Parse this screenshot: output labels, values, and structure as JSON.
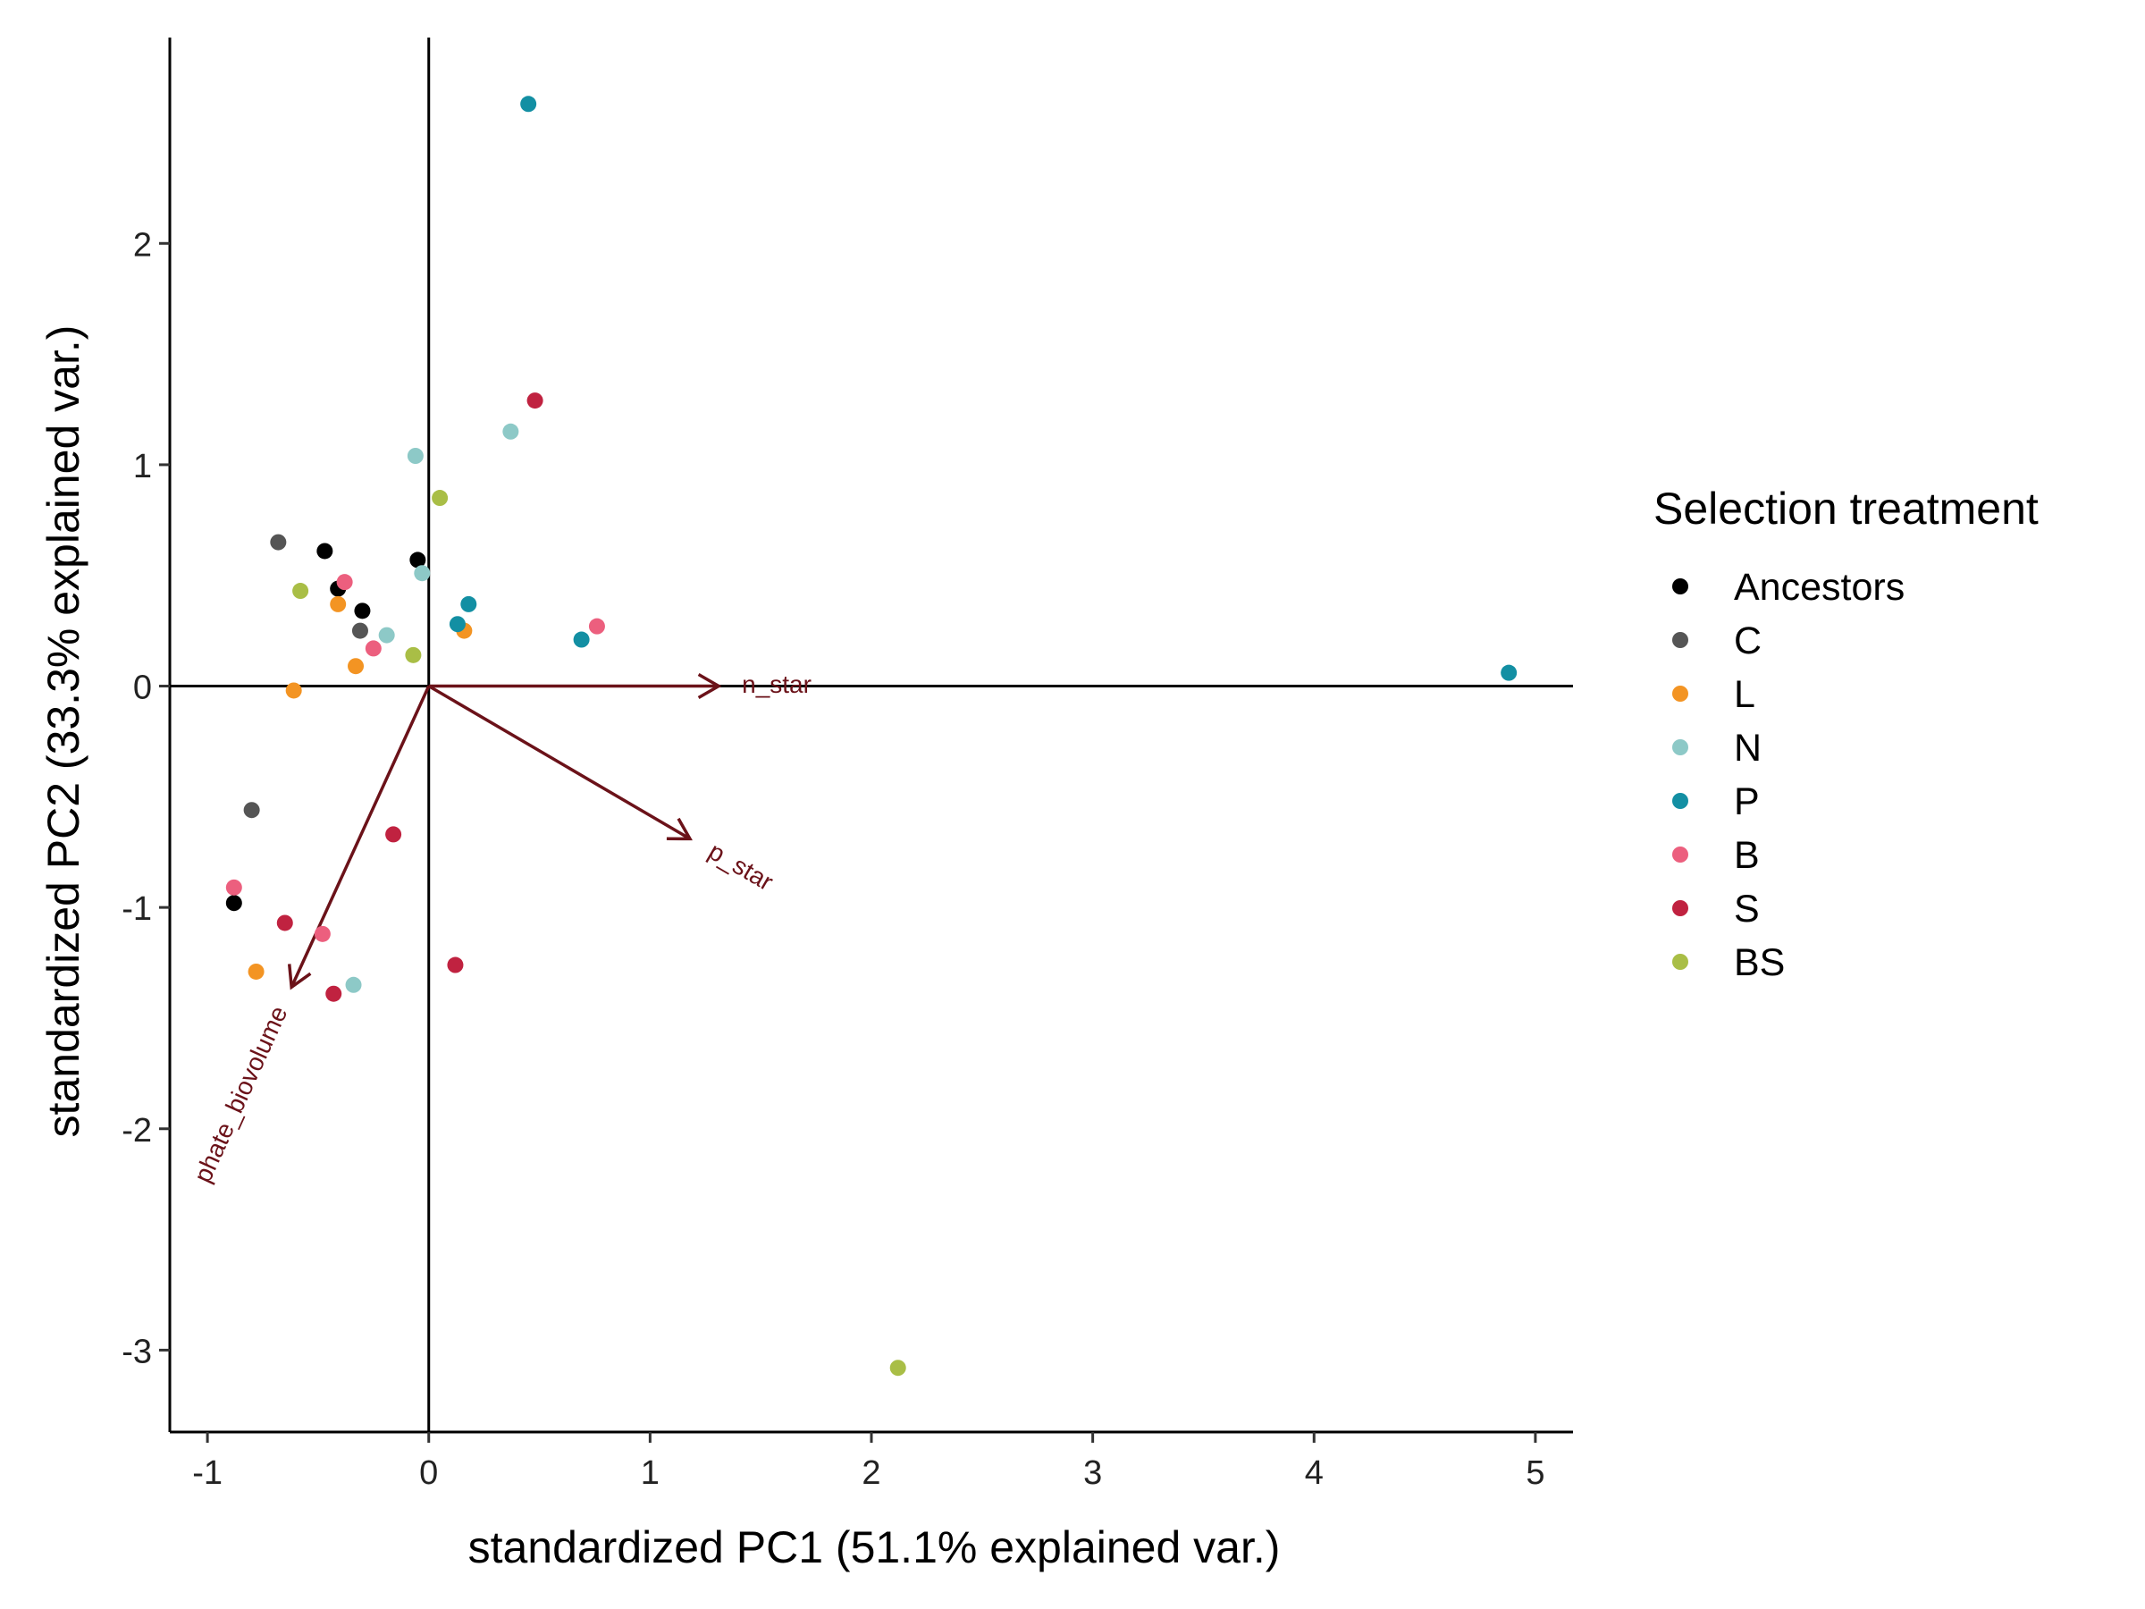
{
  "chart_data": {
    "type": "scatter",
    "xlabel": "standardized PC1 (51.1% explained var.)",
    "ylabel": "standardized PC2 (33.3% explained var.)",
    "xlim": [
      -1.17,
      5.17
    ],
    "ylim": [
      -3.37,
      2.93
    ],
    "x_ticks": [
      -1,
      0,
      1,
      2,
      3,
      4,
      5
    ],
    "y_ticks": [
      -3,
      -2,
      -1,
      0,
      1,
      2
    ],
    "x_tick_labels": [
      "-1",
      "0",
      "1",
      "2",
      "3",
      "4",
      "5"
    ],
    "y_tick_labels": [
      "-3",
      "-2",
      "-1",
      "0",
      "1",
      "2"
    ],
    "reference_lines": {
      "x": 0,
      "y": 0
    },
    "legend": {
      "title": "Selection treatment",
      "placement": "right"
    },
    "series": [
      {
        "name": "Ancestors",
        "color": "#000000",
        "points": [
          [
            -0.47,
            0.61
          ],
          [
            -0.41,
            0.44
          ],
          [
            -0.3,
            0.34
          ],
          [
            -0.05,
            0.57
          ],
          [
            -0.88,
            -0.98
          ]
        ]
      },
      {
        "name": "C",
        "color": "#555555",
        "points": [
          [
            -0.68,
            0.65
          ],
          [
            -0.31,
            0.25
          ],
          [
            -0.8,
            -0.56
          ]
        ]
      },
      {
        "name": "L",
        "color": "#F39423",
        "points": [
          [
            -0.41,
            0.37
          ],
          [
            -0.33,
            0.09
          ],
          [
            -0.61,
            -0.02
          ],
          [
            0.16,
            0.25
          ],
          [
            -0.78,
            -1.29
          ]
        ]
      },
      {
        "name": "N",
        "color": "#8DC9C7",
        "points": [
          [
            -0.06,
            1.04
          ],
          [
            0.37,
            1.15
          ],
          [
            -0.03,
            0.51
          ],
          [
            -0.19,
            0.23
          ],
          [
            -0.34,
            -1.35
          ]
        ]
      },
      {
        "name": "P",
        "color": "#138FA3",
        "points": [
          [
            0.45,
            2.63
          ],
          [
            0.18,
            0.37
          ],
          [
            0.13,
            0.28
          ],
          [
            0.69,
            0.21
          ],
          [
            4.88,
            0.06
          ]
        ]
      },
      {
        "name": "B",
        "color": "#EC5F7E",
        "points": [
          [
            -0.38,
            0.47
          ],
          [
            -0.25,
            0.17
          ],
          [
            0.76,
            0.27
          ],
          [
            -0.88,
            -0.91
          ],
          [
            -0.48,
            -1.12
          ]
        ]
      },
      {
        "name": "S",
        "color": "#C02240",
        "points": [
          [
            0.48,
            1.29
          ],
          [
            -0.16,
            -0.67
          ],
          [
            -0.65,
            -1.07
          ],
          [
            -0.43,
            -1.39
          ],
          [
            0.12,
            -1.26
          ]
        ]
      },
      {
        "name": "BS",
        "color": "#A9BE46",
        "points": [
          [
            0.05,
            0.85
          ],
          [
            -0.58,
            0.43
          ],
          [
            -0.07,
            0.14
          ],
          [
            2.12,
            -3.08
          ]
        ]
      }
    ],
    "loadings": [
      {
        "name": "n_star",
        "color": "#6B1219",
        "x": 1.31,
        "y": 0.0
      },
      {
        "name": "p_star",
        "color": "#6B1219",
        "x": 1.18,
        "y": -0.69
      },
      {
        "name": "phate_biovolume",
        "color": "#6B1219",
        "x": -0.62,
        "y": -1.36
      }
    ]
  }
}
